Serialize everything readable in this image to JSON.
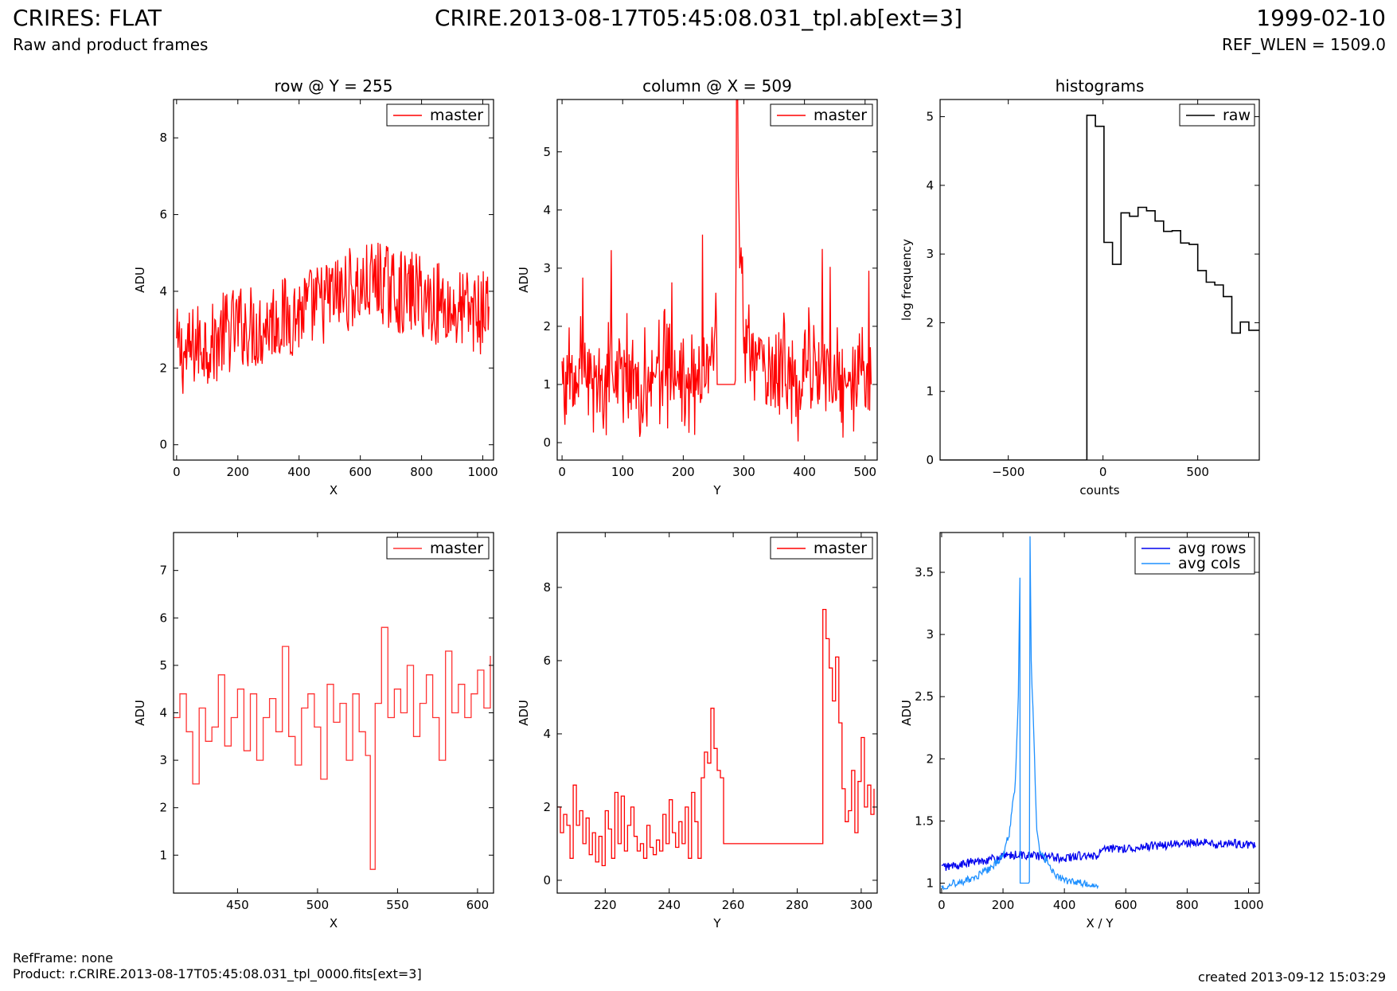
{
  "header": {
    "title": "CRIRES: FLAT",
    "subtitle": "Raw and product frames",
    "file": "CRIRE.2013-08-17T05:45:08.031_tpl.ab[ext=3]",
    "date": "1999-02-10",
    "ref_wlen": "REF_WLEN = 1509.0"
  },
  "footer": {
    "refframe": "RefFrame: none",
    "product": "Product: r.CRIRE.2013-08-17T05:45:08.031_tpl_0000.fits[ext=3]",
    "created": "created 2013-09-12 15:03:29"
  },
  "colors": {
    "master": "#ff0000",
    "master_zoom": "#ff3333",
    "raw": "#000000",
    "avg_rows": "#0000ee",
    "avg_cols": "#1e90ff"
  },
  "chart_data": [
    {
      "type": "line",
      "title": "row @ Y = 255",
      "xlabel": "X",
      "ylabel": "ADU",
      "xlim": [
        -10,
        1035
      ],
      "ylim": [
        -0.4,
        9.0
      ],
      "xticks": [
        0,
        200,
        400,
        600,
        800,
        1000
      ],
      "yticks": [
        0,
        2,
        4,
        6,
        8
      ],
      "legend": "top-right",
      "series": [
        {
          "name": "master",
          "color": "#ff0000",
          "step": false,
          "x": [
            0,
            30,
            60,
            90,
            120,
            150,
            180,
            210,
            240,
            270,
            300,
            330,
            360,
            390,
            420,
            450,
            480,
            510,
            540,
            570,
            600,
            630,
            660,
            690,
            720,
            750,
            780,
            810,
            840,
            870,
            900,
            930,
            960,
            990,
            1020
          ],
          "values": [
            2.5,
            2.3,
            2.6,
            2.7,
            2.6,
            2.9,
            3.0,
            3.1,
            3.1,
            3.0,
            3.2,
            3.3,
            3.3,
            3.4,
            3.5,
            3.6,
            3.7,
            3.9,
            3.9,
            4.1,
            4.0,
            4.2,
            4.3,
            4.1,
            4.0,
            3.9,
            4.0,
            3.8,
            3.7,
            3.7,
            3.5,
            3.5,
            3.5,
            3.4,
            3.6
          ]
        }
      ]
    },
    {
      "type": "line",
      "title": "column @ X = 509",
      "xlabel": "Y",
      "ylabel": "ADU",
      "xlim": [
        -8,
        520
      ],
      "ylim": [
        -0.3,
        5.9
      ],
      "xticks": [
        0,
        100,
        200,
        300,
        400,
        500
      ],
      "yticks": [
        0,
        1,
        2,
        3,
        4,
        5
      ],
      "legend": "top-right",
      "series": [
        {
          "name": "master",
          "color": "#ff0000",
          "step": false,
          "x": [
            0,
            20,
            40,
            60,
            80,
            100,
            120,
            140,
            160,
            180,
            200,
            220,
            240,
            250,
            255,
            256,
            286,
            288,
            292,
            300,
            320,
            340,
            360,
            380,
            400,
            420,
            440,
            460,
            480,
            500,
            510
          ],
          "values": [
            1.2,
            1.1,
            1.2,
            1.1,
            1.0,
            1.2,
            1.1,
            1.0,
            1.2,
            1.3,
            1.1,
            1.2,
            1.3,
            1.6,
            2.0,
            1.0,
            1.0,
            7.0,
            3.9,
            1.8,
            1.3,
            1.2,
            1.0,
            1.1,
            1.0,
            1.2,
            1.1,
            1.0,
            1.0,
            1.1,
            1.0
          ]
        }
      ]
    },
    {
      "type": "line",
      "title": "histograms",
      "xlabel": "counts",
      "ylabel": "log frequency",
      "xlim": [
        -860,
        825
      ],
      "ylim": [
        0,
        5.25
      ],
      "xticks": [
        -500,
        0,
        500
      ],
      "yticks": [
        0,
        1,
        2,
        3,
        4,
        5
      ],
      "legend": "top-right",
      "series": [
        {
          "name": "raw",
          "color": "#000000",
          "step": true,
          "x": [
            -860,
            -85,
            -85,
            -40,
            -40,
            5,
            5,
            50,
            50,
            95,
            95,
            140,
            140,
            185,
            185,
            230,
            230,
            275,
            275,
            320,
            320,
            365,
            365,
            410,
            410,
            455,
            455,
            500,
            500,
            545,
            545,
            590,
            590,
            635,
            635,
            680,
            680,
            725,
            725,
            770,
            770,
            825
          ],
          "values": [
            0,
            0,
            5.02,
            5.02,
            4.86,
            4.86,
            3.17,
            3.17,
            2.85,
            2.85,
            3.6,
            3.6,
            3.55,
            3.55,
            3.68,
            3.68,
            3.63,
            3.63,
            3.48,
            3.48,
            3.33,
            3.33,
            3.34,
            3.34,
            3.16,
            3.16,
            3.14,
            3.14,
            2.76,
            2.76,
            2.59,
            2.59,
            2.55,
            2.55,
            2.38,
            2.38,
            1.85,
            1.85,
            2.01,
            2.01,
            1.89,
            1.89
          ]
        }
      ]
    },
    {
      "type": "line",
      "title": "",
      "xlabel": "X",
      "ylabel": "ADU",
      "xlim": [
        410,
        610
      ],
      "ylim": [
        0.2,
        7.8
      ],
      "xticks": [
        450,
        500,
        550,
        600
      ],
      "yticks": [
        1,
        2,
        3,
        4,
        5,
        6,
        7
      ],
      "legend": "top-right",
      "series": [
        {
          "name": "master",
          "color": "#ff3333",
          "step": true,
          "x": [
            410,
            414,
            418,
            422,
            426,
            430,
            434,
            438,
            442,
            446,
            450,
            454,
            458,
            462,
            466,
            470,
            474,
            478,
            482,
            486,
            490,
            494,
            498,
            502,
            506,
            510,
            514,
            518,
            522,
            526,
            530,
            533,
            536,
            540,
            544,
            548,
            552,
            556,
            560,
            564,
            568,
            572,
            576,
            580,
            584,
            588,
            592,
            596,
            600,
            604,
            608
          ],
          "values": [
            3.9,
            4.4,
            3.6,
            2.5,
            4.1,
            3.4,
            3.7,
            4.8,
            3.3,
            3.9,
            4.5,
            3.2,
            4.4,
            3.0,
            3.9,
            4.3,
            3.6,
            5.4,
            3.5,
            2.9,
            4.1,
            4.4,
            3.7,
            2.6,
            4.6,
            3.8,
            4.2,
            3.0,
            4.4,
            3.6,
            3.1,
            0.7,
            4.2,
            5.8,
            3.9,
            4.5,
            4.0,
            5.0,
            3.5,
            4.2,
            4.8,
            3.9,
            3.0,
            5.3,
            4.0,
            4.6,
            3.9,
            4.4,
            4.9,
            4.1,
            5.2
          ]
        }
      ]
    },
    {
      "type": "line",
      "title": "",
      "xlabel": "Y",
      "ylabel": "ADU",
      "xlim": [
        205,
        305
      ],
      "ylim": [
        -0.35,
        9.5
      ],
      "xticks": [
        220,
        240,
        260,
        280,
        300
      ],
      "yticks": [
        0,
        2,
        4,
        6,
        8
      ],
      "legend": "top-right",
      "series": [
        {
          "name": "master",
          "color": "#ff0000",
          "step": true,
          "x": [
            205,
            206,
            207,
            208,
            209,
            210,
            211,
            212,
            213,
            214,
            215,
            216,
            217,
            218,
            219,
            220,
            221,
            222,
            223,
            224,
            225,
            226,
            227,
            228,
            229,
            230,
            231,
            232,
            233,
            234,
            235,
            236,
            237,
            238,
            239,
            240,
            241,
            242,
            243,
            244,
            245,
            246,
            247,
            248,
            249,
            250,
            251,
            252,
            253,
            254,
            255,
            256,
            257,
            287,
            288,
            289,
            290,
            291,
            292,
            293,
            294,
            295,
            296,
            297,
            298,
            299,
            300,
            301,
            302,
            303,
            304
          ],
          "values": [
            2.0,
            1.3,
            1.8,
            1.5,
            0.6,
            2.6,
            1.5,
            1.9,
            1.0,
            1.7,
            0.7,
            1.3,
            0.5,
            1.2,
            0.4,
            1.9,
            1.4,
            0.6,
            2.4,
            1.0,
            2.3,
            0.8,
            1.5,
            2.0,
            1.2,
            0.8,
            1.0,
            0.6,
            1.5,
            0.9,
            0.7,
            1.1,
            0.8,
            1.8,
            1.0,
            2.2,
            1.3,
            0.9,
            1.6,
            1.0,
            2.0,
            0.6,
            2.4,
            1.6,
            0.6,
            2.8,
            3.5,
            3.2,
            4.7,
            3.6,
            3.0,
            2.8,
            1.0,
            1.0,
            7.4,
            6.6,
            5.8,
            4.9,
            6.1,
            4.3,
            2.5,
            1.6,
            1.9,
            3.0,
            1.3,
            2.7,
            3.9,
            2.0,
            2.6,
            1.8,
            2.5
          ]
        }
      ]
    },
    {
      "type": "line",
      "title": "",
      "xlabel": "X / Y",
      "ylabel": "ADU",
      "xlim": [
        -5,
        1035
      ],
      "ylim": [
        0.92,
        3.82
      ],
      "xticks": [
        0,
        200,
        400,
        600,
        800,
        1000
      ],
      "yticks": [
        1.0,
        1.5,
        2.0,
        2.5,
        3.0,
        3.5
      ],
      "legend": "top-right",
      "series": [
        {
          "name": "avg rows",
          "color": "#0000ee",
          "step": false,
          "x": [
            0,
            50,
            100,
            150,
            200,
            250,
            300,
            350,
            400,
            450,
            500,
            520,
            540,
            600,
            650,
            700,
            750,
            800,
            850,
            900,
            950,
            1000,
            1023
          ],
          "values": [
            1.13,
            1.14,
            1.17,
            1.19,
            1.21,
            1.23,
            1.22,
            1.21,
            1.2,
            1.22,
            1.21,
            1.26,
            1.27,
            1.28,
            1.29,
            1.3,
            1.31,
            1.32,
            1.33,
            1.31,
            1.32,
            1.31,
            1.3
          ]
        },
        {
          "name": "avg cols",
          "color": "#1e90ff",
          "step": false,
          "x": [
            0,
            40,
            80,
            120,
            160,
            200,
            220,
            240,
            250,
            255,
            256,
            286,
            288,
            292,
            300,
            305,
            310,
            320,
            340,
            360,
            380,
            400,
            450,
            510
          ],
          "values": [
            0.97,
            1.0,
            1.02,
            1.06,
            1.12,
            1.22,
            1.4,
            1.8,
            2.5,
            3.48,
            1.0,
            1.0,
            3.8,
            2.8,
            2.2,
            1.8,
            1.4,
            1.25,
            1.18,
            1.1,
            1.05,
            1.02,
            1.0,
            0.98
          ]
        }
      ]
    }
  ]
}
